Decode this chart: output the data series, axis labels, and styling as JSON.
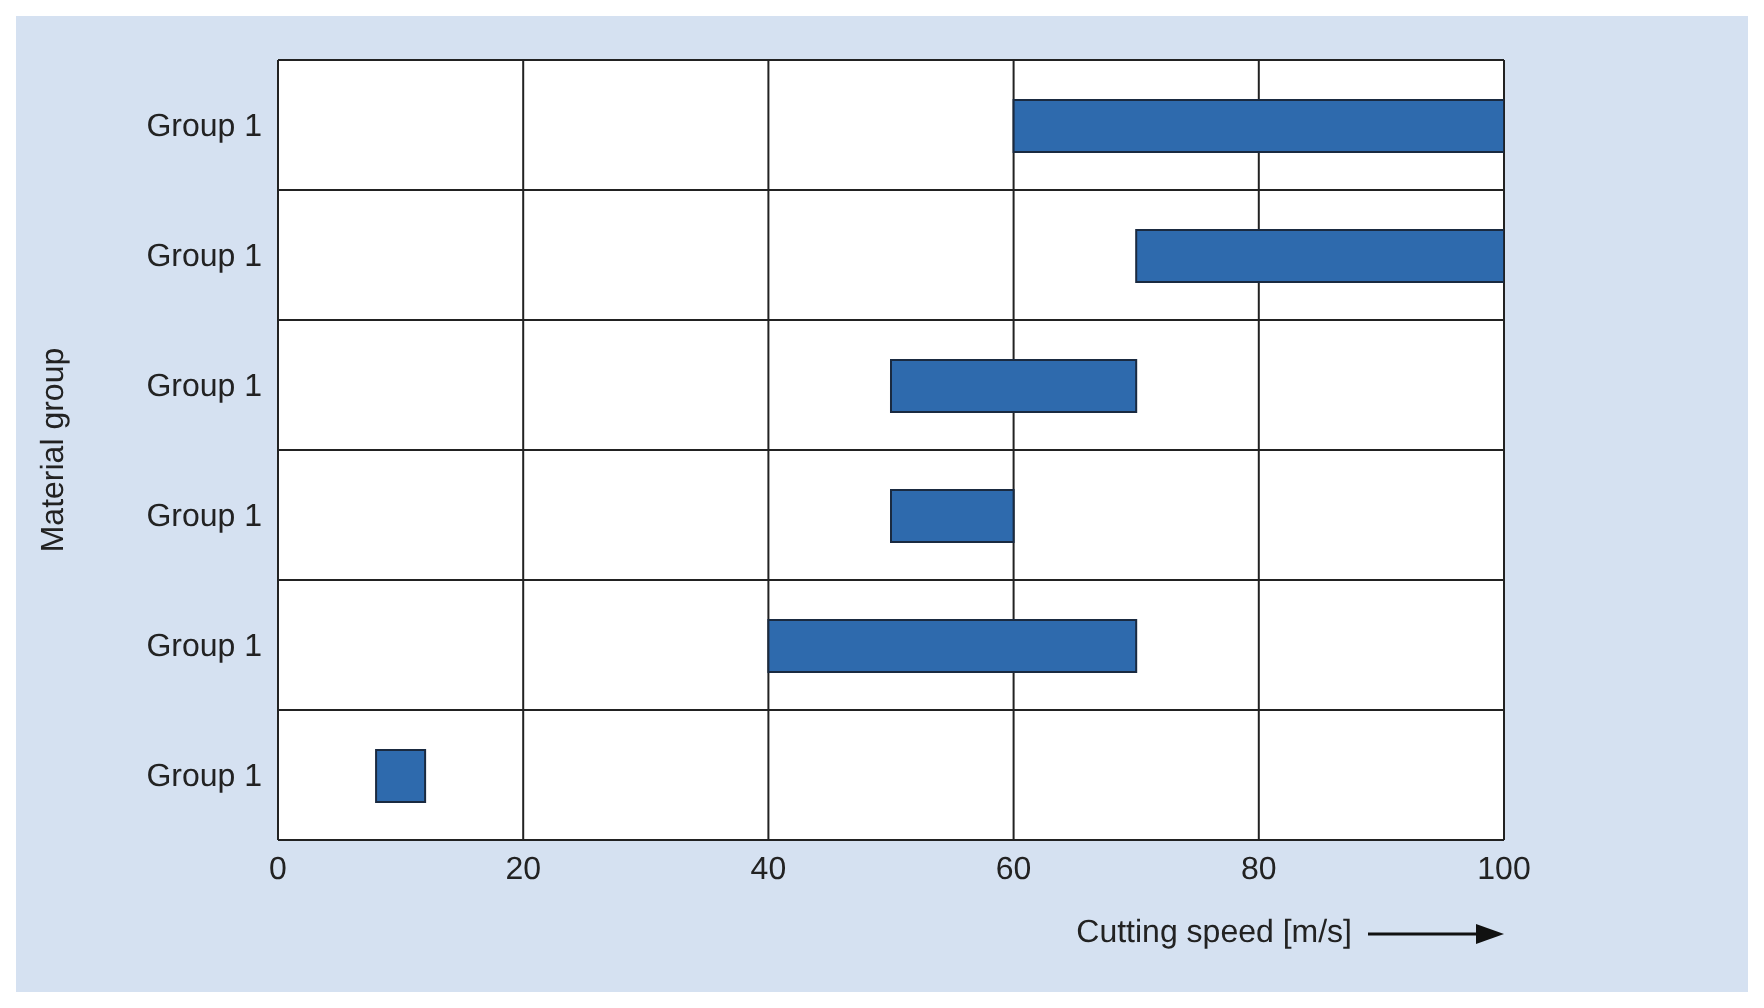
{
  "chart_data": {
    "type": "bar",
    "orientation": "horizontal",
    "xlabel": "Cutting speed [m/s]",
    "ylabel": "Material group",
    "categories": [
      "Group 1",
      "Group 1",
      "Group 1",
      "Group 1",
      "Group 1",
      "Group 1"
    ],
    "base": [
      60,
      70,
      50,
      50,
      40,
      8
    ],
    "values": [
      40,
      30,
      20,
      10,
      30,
      4
    ],
    "color": "#2e6aad",
    "xlim": [
      0,
      100
    ],
    "xticks": [
      0,
      20,
      40,
      60,
      80,
      100
    ],
    "grid": true
  }
}
